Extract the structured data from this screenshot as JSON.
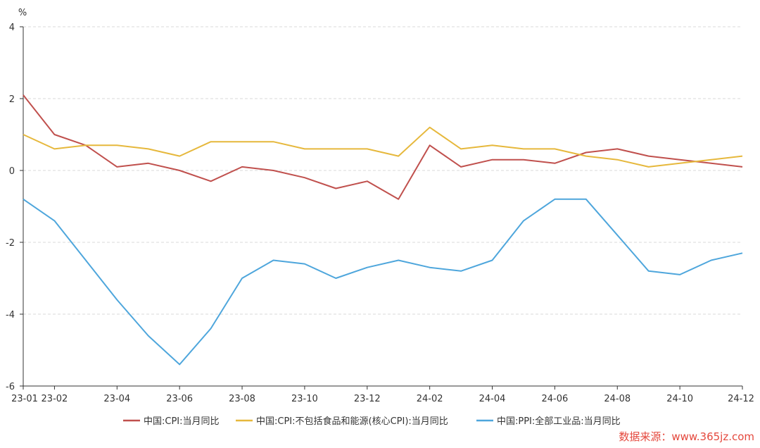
{
  "chart_data": {
    "type": "line",
    "ylabel": "%",
    "ylim": [
      -6,
      4
    ],
    "yticks": [
      -6,
      -4,
      -2,
      0,
      2,
      4
    ],
    "grid": true,
    "legend_position": "bottom",
    "x": [
      "23-01",
      "23-02",
      "23-03",
      "23-04",
      "23-05",
      "23-06",
      "23-07",
      "23-08",
      "23-09",
      "23-10",
      "23-11",
      "23-12",
      "24-01",
      "24-02",
      "24-03",
      "24-04",
      "24-05",
      "24-06",
      "24-07",
      "24-08",
      "24-09",
      "24-10",
      "24-11",
      "24-12"
    ],
    "xtick_labels": [
      "23-01",
      "23-02",
      "23-04",
      "23-06",
      "23-08",
      "23-10",
      "23-12",
      "24-02",
      "24-04",
      "24-06",
      "24-08",
      "24-10",
      "24-12"
    ],
    "series": [
      {
        "name": "中国:CPI:当月同比",
        "color": "#c0504d",
        "values": [
          2.1,
          1.0,
          0.7,
          0.1,
          0.2,
          0.0,
          -0.3,
          0.1,
          0.0,
          -0.2,
          -0.5,
          -0.3,
          -0.8,
          0.7,
          0.1,
          0.3,
          0.3,
          0.2,
          0.5,
          0.6,
          0.4,
          0.3,
          0.2,
          0.1
        ]
      },
      {
        "name": "中国:CPI:不包括食品和能源(核心CPI):当月同比",
        "color": "#e6b83c",
        "values": [
          1.0,
          0.6,
          0.7,
          0.7,
          0.6,
          0.4,
          0.8,
          0.8,
          0.8,
          0.6,
          0.6,
          0.6,
          0.4,
          1.2,
          0.6,
          0.7,
          0.6,
          0.6,
          0.4,
          0.3,
          0.1,
          0.2,
          0.3,
          0.4
        ]
      },
      {
        "name": "中国:PPI:全部工业品:当月同比",
        "color": "#4ea6dc",
        "values": [
          -0.8,
          -1.4,
          -2.5,
          -3.6,
          -4.6,
          -5.4,
          -4.4,
          -3.0,
          -2.5,
          -2.6,
          -3.0,
          -2.7,
          -2.5,
          -2.7,
          -2.8,
          -2.5,
          -1.4,
          -0.8,
          -0.8,
          -1.8,
          -2.8,
          -2.9,
          -2.5,
          -2.3
        ]
      }
    ]
  },
  "watermark": "数据来源：www.365jz.com"
}
